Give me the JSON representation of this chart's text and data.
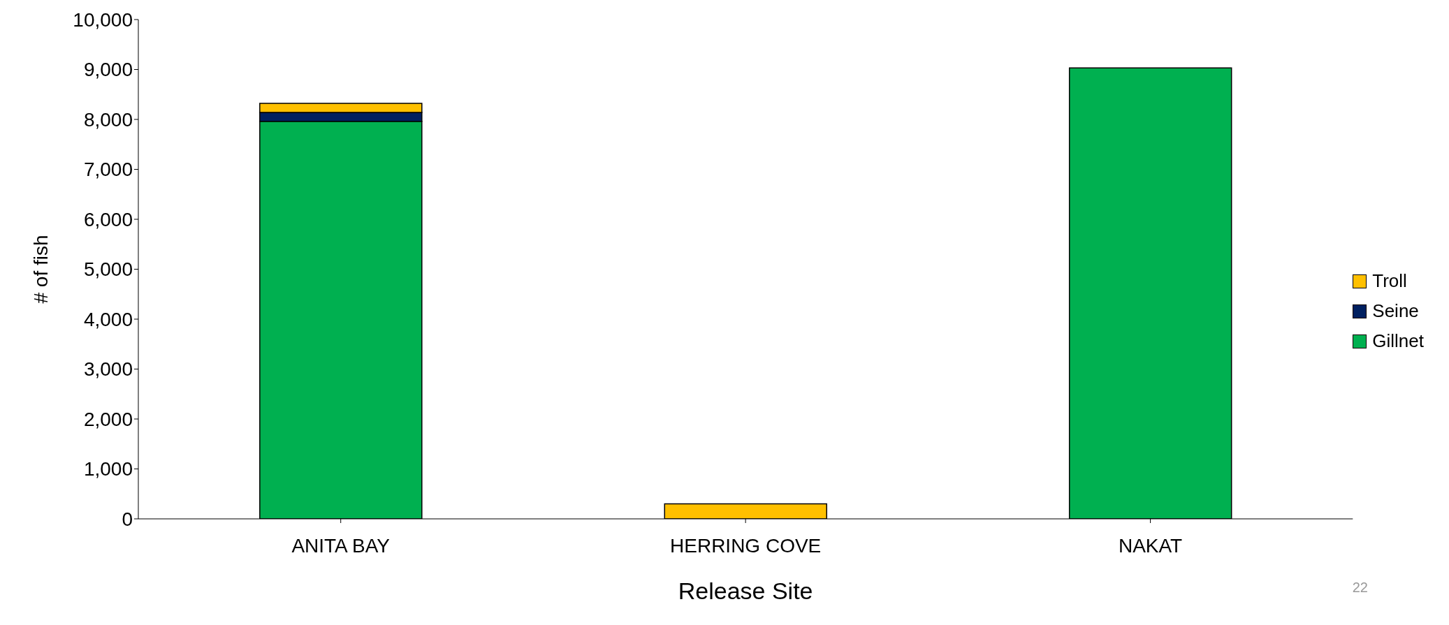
{
  "chart_data": {
    "type": "bar",
    "stacked": true,
    "xlabel": "Release Site",
    "ylabel": "# of fish",
    "categories": [
      "ANITA BAY",
      "HERRING COVE",
      "NAKAT"
    ],
    "series": [
      {
        "name": "Gillnet",
        "color": "#00b050",
        "values": [
          7960,
          0,
          9030
        ]
      },
      {
        "name": "Seine",
        "color": "#002060",
        "values": [
          180,
          0,
          0
        ]
      },
      {
        "name": "Troll",
        "color": "#ffc000",
        "values": [
          180,
          300,
          0
        ]
      }
    ],
    "ylim": [
      0,
      10000
    ],
    "yticks": [
      0,
      {
        "value": 1000,
        "label": "1,000"
      },
      {
        "value": 2000,
        "label": "2,000"
      },
      {
        "value": 3000,
        "label": "3,000"
      },
      {
        "value": 4000,
        "label": "4,000"
      },
      {
        "value": 5000,
        "label": "5,000"
      },
      {
        "value": 6000,
        "label": "6,000"
      },
      {
        "value": 7000,
        "label": "7,000"
      },
      {
        "value": 8000,
        "label": "8,000"
      },
      {
        "value": 9000,
        "label": "9,000"
      },
      {
        "value": 10000,
        "label": "10,000"
      }
    ],
    "grid": false,
    "legend": "right",
    "annotations": [
      "22"
    ]
  }
}
